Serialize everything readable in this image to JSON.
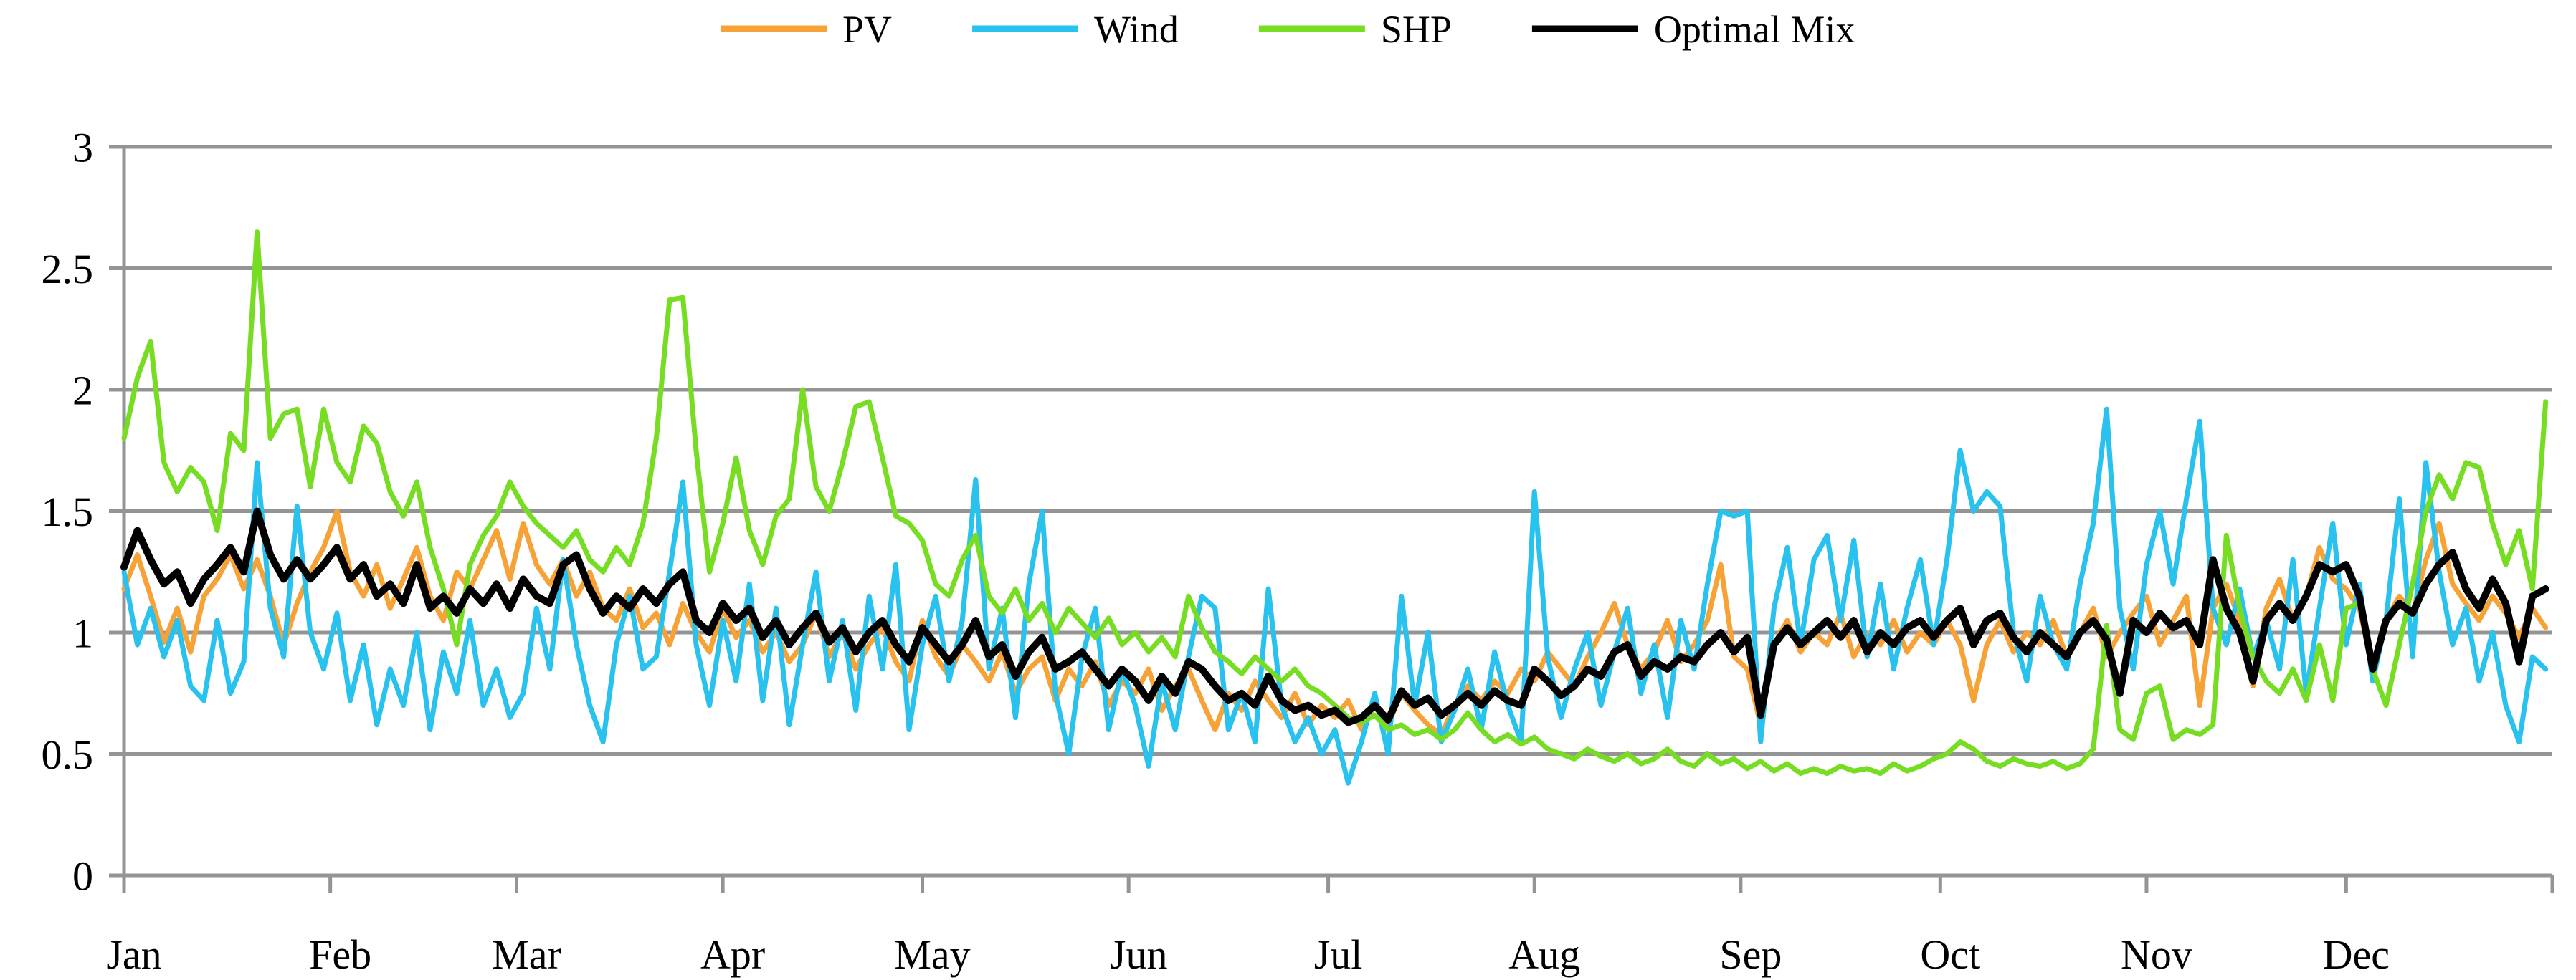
{
  "chart_data": {
    "type": "line",
    "title": "",
    "xlabel": "",
    "ylabel": "",
    "ylim": [
      0,
      3
    ],
    "yticks": [
      0,
      0.5,
      1,
      1.5,
      2,
      2.5,
      3
    ],
    "ytick_labels": [
      "0",
      "0.5",
      "1",
      "1.5",
      "2",
      "2.5",
      "3"
    ],
    "x_categories_months": [
      "Jan",
      "Feb",
      "Mar",
      "Apr",
      "May",
      "Jun",
      "Jul",
      "Aug",
      "Sep",
      "Oct",
      "Nov",
      "Dec"
    ],
    "month_start_days": [
      1,
      32,
      60,
      91,
      121,
      152,
      182,
      213,
      244,
      274,
      305,
      335
    ],
    "x_axis_span_days": 366,
    "sampling": {
      "first_day": 1,
      "day_step": 2,
      "n_points": 183
    },
    "grid": "horizontal-on",
    "legend_position": "top-center",
    "colors": {
      "pv": "#F7A237",
      "wind": "#29C2EF",
      "shp": "#76DD23",
      "optimal_mix": "#000000",
      "grid": "#949494"
    },
    "series": [
      {
        "name": "PV",
        "color": "#F7A237",
        "width": 7,
        "values": [
          1.18,
          1.32,
          1.15,
          0.96,
          1.1,
          0.92,
          1.15,
          1.22,
          1.32,
          1.18,
          1.3,
          1.15,
          0.95,
          1.12,
          1.25,
          1.35,
          1.5,
          1.25,
          1.15,
          1.28,
          1.1,
          1.22,
          1.35,
          1.15,
          1.05,
          1.25,
          1.18,
          1.3,
          1.42,
          1.22,
          1.45,
          1.28,
          1.2,
          1.3,
          1.15,
          1.25,
          1.1,
          1.05,
          1.18,
          1.02,
          1.08,
          0.95,
          1.12,
          1.0,
          0.92,
          1.1,
          0.98,
          1.05,
          0.92,
          1.0,
          0.88,
          0.95,
          1.08,
          0.9,
          1.0,
          0.85,
          0.95,
          1.02,
          0.88,
          0.8,
          1.05,
          0.9,
          0.82,
          0.95,
          0.88,
          0.8,
          0.92,
          0.75,
          0.85,
          0.9,
          0.72,
          0.85,
          0.78,
          0.88,
          0.7,
          0.8,
          0.75,
          0.85,
          0.68,
          0.78,
          0.85,
          0.72,
          0.6,
          0.75,
          0.68,
          0.8,
          0.72,
          0.65,
          0.75,
          0.62,
          0.7,
          0.65,
          0.72,
          0.6,
          0.7,
          0.62,
          0.75,
          0.68,
          0.62,
          0.58,
          0.7,
          0.78,
          0.72,
          0.8,
          0.75,
          0.85,
          0.8,
          0.92,
          0.85,
          0.78,
          0.9,
          1.0,
          1.12,
          0.95,
          0.85,
          0.92,
          1.05,
          0.88,
          0.95,
          1.05,
          1.28,
          0.9,
          0.85,
          0.62,
          0.95,
          1.05,
          0.92,
          1.0,
          0.95,
          1.08,
          0.9,
          1.0,
          0.95,
          1.05,
          0.92,
          1.0,
          0.95,
          1.05,
          0.95,
          0.72,
          0.95,
          1.05,
          0.92,
          1.0,
          0.95,
          1.05,
          0.9,
          1.0,
          1.1,
          0.9,
          1.0,
          1.08,
          1.15,
          0.95,
          1.05,
          1.15,
          0.7,
          1.1,
          1.2,
          1.05,
          0.78,
          1.1,
          1.22,
          1.05,
          1.15,
          1.35,
          1.22,
          1.18,
          1.1,
          0.85,
          1.05,
          1.15,
          1.08,
          1.3,
          1.45,
          1.2,
          1.12,
          1.05,
          1.15,
          1.08,
          0.98,
          1.1,
          1.02
        ]
      },
      {
        "name": "Wind",
        "color": "#29C2EF",
        "width": 7,
        "values": [
          1.25,
          0.95,
          1.1,
          0.9,
          1.05,
          0.78,
          0.72,
          1.05,
          0.75,
          0.88,
          1.7,
          1.1,
          0.9,
          1.52,
          1.0,
          0.85,
          1.08,
          0.72,
          0.95,
          0.62,
          0.85,
          0.7,
          1.0,
          0.6,
          0.92,
          0.75,
          1.05,
          0.7,
          0.85,
          0.65,
          0.75,
          1.1,
          0.85,
          1.3,
          0.95,
          0.7,
          0.55,
          0.95,
          1.15,
          0.85,
          0.9,
          1.25,
          1.62,
          0.95,
          0.7,
          1.05,
          0.8,
          1.2,
          0.72,
          1.1,
          0.62,
          0.95,
          1.25,
          0.8,
          1.05,
          0.68,
          1.15,
          0.85,
          1.28,
          0.6,
          0.95,
          1.15,
          0.8,
          1.05,
          1.63,
          0.85,
          1.1,
          0.65,
          1.2,
          1.5,
          0.75,
          0.5,
          0.9,
          1.1,
          0.6,
          0.85,
          0.7,
          0.45,
          0.8,
          0.6,
          0.9,
          1.15,
          1.1,
          0.6,
          0.75,
          0.55,
          1.18,
          0.7,
          0.55,
          0.65,
          0.5,
          0.6,
          0.38,
          0.55,
          0.75,
          0.5,
          1.15,
          0.7,
          1.0,
          0.55,
          0.68,
          0.85,
          0.6,
          0.92,
          0.7,
          0.55,
          1.58,
          0.9,
          0.65,
          0.85,
          1.0,
          0.7,
          0.92,
          1.1,
          0.75,
          0.95,
          0.65,
          1.05,
          0.85,
          1.2,
          1.5,
          1.48,
          1.5,
          0.55,
          1.1,
          1.35,
          0.95,
          1.3,
          1.4,
          1.05,
          1.38,
          0.9,
          1.2,
          0.85,
          1.1,
          1.3,
          0.95,
          1.3,
          1.75,
          1.5,
          1.58,
          1.52,
          1.0,
          0.8,
          1.15,
          0.95,
          0.85,
          1.2,
          1.45,
          1.92,
          1.1,
          0.85,
          1.28,
          1.5,
          1.2,
          1.55,
          1.87,
          1.1,
          0.95,
          1.18,
          0.9,
          1.05,
          0.85,
          1.3,
          0.75,
          1.1,
          1.45,
          0.95,
          1.2,
          0.8,
          1.05,
          1.55,
          0.9,
          1.7,
          1.25,
          0.95,
          1.1,
          0.8,
          1.0,
          0.7,
          0.55,
          0.9,
          0.85
        ]
      },
      {
        "name": "SHP",
        "color": "#76DD23",
        "width": 7,
        "values": [
          1.8,
          2.05,
          2.2,
          1.7,
          1.58,
          1.68,
          1.62,
          1.42,
          1.82,
          1.75,
          2.65,
          1.8,
          1.9,
          1.92,
          1.6,
          1.92,
          1.7,
          1.62,
          1.85,
          1.78,
          1.58,
          1.48,
          1.62,
          1.35,
          1.18,
          0.95,
          1.28,
          1.4,
          1.48,
          1.62,
          1.52,
          1.45,
          1.4,
          1.35,
          1.42,
          1.3,
          1.25,
          1.35,
          1.28,
          1.45,
          1.8,
          2.37,
          2.38,
          1.75,
          1.25,
          1.45,
          1.72,
          1.42,
          1.28,
          1.48,
          1.55,
          2.0,
          1.6,
          1.5,
          1.7,
          1.93,
          1.95,
          1.72,
          1.48,
          1.45,
          1.38,
          1.2,
          1.15,
          1.3,
          1.4,
          1.15,
          1.08,
          1.18,
          1.05,
          1.12,
          1.0,
          1.1,
          1.04,
          0.98,
          1.06,
          0.95,
          1.0,
          0.92,
          0.98,
          0.9,
          1.15,
          1.02,
          0.92,
          0.88,
          0.83,
          0.9,
          0.85,
          0.8,
          0.85,
          0.78,
          0.75,
          0.7,
          0.65,
          0.63,
          0.66,
          0.6,
          0.62,
          0.58,
          0.6,
          0.56,
          0.6,
          0.67,
          0.6,
          0.55,
          0.58,
          0.54,
          0.57,
          0.52,
          0.5,
          0.48,
          0.52,
          0.49,
          0.47,
          0.5,
          0.46,
          0.48,
          0.52,
          0.47,
          0.45,
          0.5,
          0.46,
          0.48,
          0.44,
          0.47,
          0.43,
          0.46,
          0.42,
          0.44,
          0.42,
          0.45,
          0.43,
          0.44,
          0.42,
          0.46,
          0.43,
          0.45,
          0.48,
          0.5,
          0.55,
          0.52,
          0.47,
          0.45,
          0.48,
          0.46,
          0.45,
          0.47,
          0.44,
          0.46,
          0.52,
          1.03,
          0.6,
          0.56,
          0.75,
          0.78,
          0.56,
          0.6,
          0.58,
          0.62,
          1.4,
          1.1,
          0.9,
          0.8,
          0.75,
          0.85,
          0.72,
          0.95,
          0.72,
          1.1,
          1.12,
          0.85,
          0.7,
          0.95,
          1.2,
          1.5,
          1.65,
          1.55,
          1.7,
          1.68,
          1.45,
          1.28,
          1.42,
          1.18,
          1.95
        ]
      },
      {
        "name": "Optimal Mix",
        "color": "#000000",
        "width": 10,
        "values": [
          1.27,
          1.42,
          1.3,
          1.2,
          1.25,
          1.12,
          1.22,
          1.28,
          1.35,
          1.25,
          1.5,
          1.32,
          1.22,
          1.3,
          1.22,
          1.28,
          1.35,
          1.22,
          1.28,
          1.15,
          1.2,
          1.12,
          1.28,
          1.1,
          1.15,
          1.08,
          1.18,
          1.12,
          1.2,
          1.1,
          1.22,
          1.15,
          1.12,
          1.28,
          1.32,
          1.18,
          1.08,
          1.15,
          1.1,
          1.18,
          1.12,
          1.2,
          1.25,
          1.05,
          1.0,
          1.12,
          1.05,
          1.1,
          0.98,
          1.05,
          0.95,
          1.02,
          1.08,
          0.96,
          1.02,
          0.92,
          1.0,
          1.05,
          0.95,
          0.88,
          1.02,
          0.95,
          0.88,
          0.95,
          1.05,
          0.9,
          0.95,
          0.82,
          0.92,
          0.98,
          0.85,
          0.88,
          0.92,
          0.85,
          0.78,
          0.85,
          0.8,
          0.72,
          0.82,
          0.75,
          0.88,
          0.85,
          0.78,
          0.72,
          0.75,
          0.7,
          0.82,
          0.72,
          0.68,
          0.7,
          0.66,
          0.68,
          0.63,
          0.65,
          0.7,
          0.64,
          0.76,
          0.7,
          0.73,
          0.66,
          0.7,
          0.75,
          0.7,
          0.76,
          0.72,
          0.7,
          0.85,
          0.8,
          0.74,
          0.78,
          0.85,
          0.82,
          0.92,
          0.95,
          0.82,
          0.88,
          0.85,
          0.9,
          0.88,
          0.95,
          1.0,
          0.92,
          0.98,
          0.66,
          0.95,
          1.02,
          0.95,
          1.0,
          1.05,
          0.98,
          1.05,
          0.92,
          1.0,
          0.95,
          1.02,
          1.05,
          0.98,
          1.05,
          1.1,
          0.95,
          1.05,
          1.08,
          0.98,
          0.92,
          1.0,
          0.95,
          0.9,
          1.0,
          1.05,
          0.97,
          0.75,
          1.05,
          1.0,
          1.08,
          1.02,
          1.05,
          0.95,
          1.3,
          1.1,
          1.0,
          0.8,
          1.05,
          1.12,
          1.05,
          1.15,
          1.28,
          1.25,
          1.28,
          1.15,
          0.85,
          1.05,
          1.12,
          1.08,
          1.2,
          1.28,
          1.33,
          1.18,
          1.1,
          1.22,
          1.12,
          0.88,
          1.15,
          1.18
        ]
      }
    ]
  },
  "legend": {
    "items": [
      {
        "label": "PV",
        "color": "#F7A237"
      },
      {
        "label": "Wind",
        "color": "#29C2EF"
      },
      {
        "label": "SHP",
        "color": "#76DD23"
      },
      {
        "label": "Optimal Mix",
        "color": "#000000"
      }
    ]
  }
}
